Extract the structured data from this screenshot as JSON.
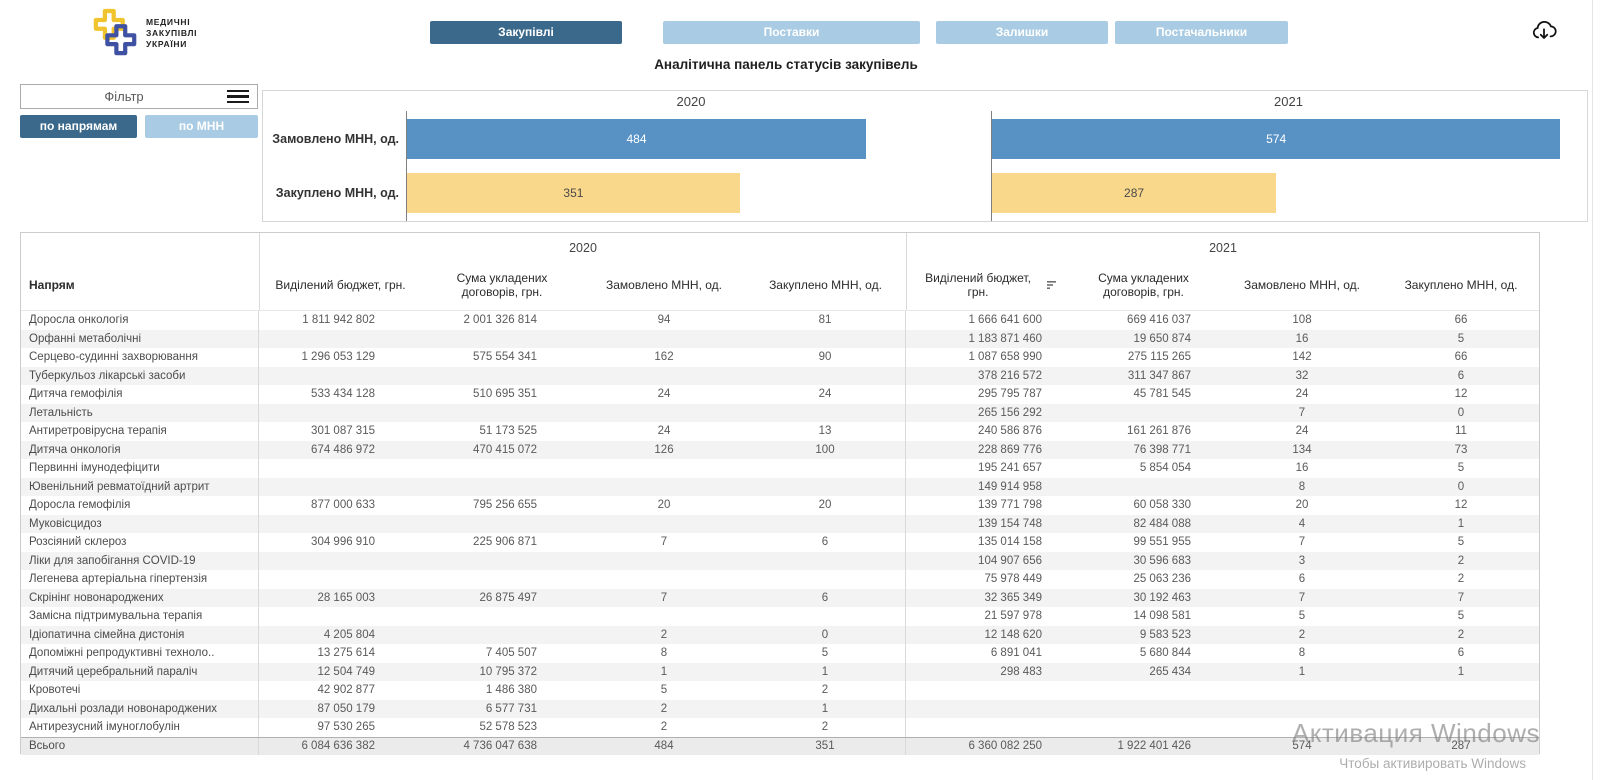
{
  "app": {
    "logo_lines": [
      "МЕДИЧНІ",
      "ЗАКУПІВЛІ",
      "УКРАЇНИ"
    ],
    "subtitle": "Аналітична панель статусів закупівель"
  },
  "tabs": [
    {
      "label": "Закупівлі",
      "active": true
    },
    {
      "label": "Поставки",
      "active": false
    },
    {
      "label": "Залишки",
      "active": false
    },
    {
      "label": "Постачальники",
      "active": false
    }
  ],
  "filter": {
    "label": "Фільтр",
    "buttons": [
      {
        "label": "по напрямам",
        "active": true
      },
      {
        "label": "по МНН",
        "active": false
      }
    ]
  },
  "chart_data": {
    "type": "bar",
    "orientation": "horizontal",
    "categories": [
      "Замовлено МНН, од.",
      "Закуплено МНН, од."
    ],
    "groups": [
      {
        "year": "2020",
        "values": [
          484,
          351
        ]
      },
      {
        "year": "2021",
        "values": [
          574,
          287
        ]
      }
    ],
    "xmax": 600,
    "bar_colors": [
      "#5892c5",
      "#f9d78b"
    ],
    "grid": false,
    "legend": "none"
  },
  "table": {
    "direction_header": "Напрям",
    "year_groups": [
      "2020",
      "2021"
    ],
    "sub_headers": [
      "Виділений бюджет, грн.",
      "Сума укладених договорів, грн.",
      "Замовлено МНН, од.",
      "Закуплено МНН, од."
    ],
    "rows": [
      {
        "name": "Доросла онкологія",
        "y2020": [
          "1 811 942 802",
          "2 001 326 814",
          "94",
          "81"
        ],
        "y2021": [
          "1 666 641 600",
          "669 416 037",
          "108",
          "66"
        ]
      },
      {
        "name": "Орфанні метаболічні",
        "y2020": [
          "",
          "",
          "",
          ""
        ],
        "y2021": [
          "1 183 871 460",
          "19 650 874",
          "16",
          "5"
        ]
      },
      {
        "name": "Серцево-судинні захворювання",
        "y2020": [
          "1 296 053 129",
          "575 554 341",
          "162",
          "90"
        ],
        "y2021": [
          "1 087 658 990",
          "275 115 265",
          "142",
          "66"
        ]
      },
      {
        "name": "Туберкульоз лікарські засоби",
        "y2020": [
          "",
          "",
          "",
          ""
        ],
        "y2021": [
          "378 216 572",
          "311 347 867",
          "32",
          "6"
        ]
      },
      {
        "name": "Дитяча гемофілія",
        "y2020": [
          "533 434 128",
          "510 695 351",
          "24",
          "24"
        ],
        "y2021": [
          "295 795 787",
          "45 781 545",
          "24",
          "12"
        ]
      },
      {
        "name": "Летальність",
        "y2020": [
          "",
          "",
          "",
          ""
        ],
        "y2021": [
          "265 156 292",
          "",
          "7",
          "0"
        ]
      },
      {
        "name": "Антиретровірусна терапія",
        "y2020": [
          "301 087 315",
          "51 173 525",
          "24",
          "13"
        ],
        "y2021": [
          "240 586 876",
          "161 261 876",
          "24",
          "11"
        ]
      },
      {
        "name": "Дитяча онкологія",
        "y2020": [
          "674 486 972",
          "470 415 072",
          "126",
          "100"
        ],
        "y2021": [
          "228 869 776",
          "76 398 771",
          "134",
          "73"
        ]
      },
      {
        "name": "Первинні імунодефіцити",
        "y2020": [
          "",
          "",
          "",
          ""
        ],
        "y2021": [
          "195 241 657",
          "5 854 054",
          "16",
          "5"
        ]
      },
      {
        "name": "Ювенільний ревматоїдний артрит",
        "y2020": [
          "",
          "",
          "",
          ""
        ],
        "y2021": [
          "149 914 958",
          "",
          "8",
          "0"
        ]
      },
      {
        "name": "Доросла гемофілія",
        "y2020": [
          "877 000 633",
          "795 256 655",
          "20",
          "20"
        ],
        "y2021": [
          "139 771 798",
          "60 058 330",
          "20",
          "12"
        ]
      },
      {
        "name": "Муковісцидоз",
        "y2020": [
          "",
          "",
          "",
          ""
        ],
        "y2021": [
          "139 154 748",
          "82 484 088",
          "4",
          "1"
        ]
      },
      {
        "name": "Розсіяний склероз",
        "y2020": [
          "304 996 910",
          "225 906 871",
          "7",
          "6"
        ],
        "y2021": [
          "135 014 158",
          "99 551 955",
          "7",
          "5"
        ]
      },
      {
        "name": "Ліки для запобігання COVID-19",
        "y2020": [
          "",
          "",
          "",
          ""
        ],
        "y2021": [
          "104 907 656",
          "30 596 683",
          "3",
          "2"
        ]
      },
      {
        "name": "Легенева артеріальна гіпертензія",
        "y2020": [
          "",
          "",
          "",
          ""
        ],
        "y2021": [
          "75 978 449",
          "25 063 236",
          "6",
          "2"
        ]
      },
      {
        "name": "Скрінінг новонароджених",
        "y2020": [
          "28 165 003",
          "26 875 497",
          "7",
          "6"
        ],
        "y2021": [
          "32 365 349",
          "30 192 463",
          "7",
          "7"
        ]
      },
      {
        "name": "Замісна підтримувальна терапія",
        "y2020": [
          "",
          "",
          "",
          ""
        ],
        "y2021": [
          "21 597 978",
          "14 098 581",
          "5",
          "5"
        ]
      },
      {
        "name": "Ідіопатична сімейна дистонія",
        "y2020": [
          "4 205 804",
          "",
          "2",
          "0"
        ],
        "y2021": [
          "12 148 620",
          "9 583 523",
          "2",
          "2"
        ]
      },
      {
        "name": "Допоміжні репродуктивні техноло..",
        "y2020": [
          "13 275 614",
          "7 405 507",
          "8",
          "5"
        ],
        "y2021": [
          "6 891 041",
          "5 680 844",
          "8",
          "6"
        ]
      },
      {
        "name": "Дитячий церебральний параліч",
        "y2020": [
          "12 504 749",
          "10 795 372",
          "1",
          "1"
        ],
        "y2021": [
          "298 483",
          "265 434",
          "1",
          "1"
        ]
      },
      {
        "name": "Кровотечі",
        "y2020": [
          "42 902 877",
          "1 486 380",
          "5",
          "2"
        ],
        "y2021": [
          "",
          "",
          "",
          ""
        ]
      },
      {
        "name": "Дихальні розлади новонароджених",
        "y2020": [
          "87 050 179",
          "6 577 731",
          "2",
          "1"
        ],
        "y2021": [
          "",
          "",
          "",
          ""
        ]
      },
      {
        "name": "Антирезусний імуноглобулін",
        "y2020": [
          "97 530 265",
          "52 578 523",
          "2",
          "2"
        ],
        "y2021": [
          "",
          "",
          "",
          ""
        ]
      }
    ],
    "total": {
      "name": "Всього",
      "y2020": [
        "6 084 636 382",
        "4 736 047 638",
        "484",
        "351"
      ],
      "y2021": [
        "6 360 082 250",
        "1 922 401 426",
        "574",
        "287"
      ]
    }
  },
  "watermark": {
    "line1": "Активация Windows",
    "line2": "Чтобы активировать Windows"
  },
  "colors": {
    "accent_dark": "#3a698c",
    "accent_light": "#a9cbe3",
    "bar_blue": "#5892c5",
    "bar_yellow": "#f9d78b"
  }
}
